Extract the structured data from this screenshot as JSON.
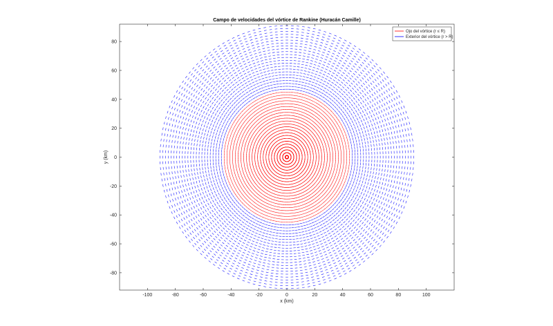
{
  "chart_data": {
    "type": "scatter",
    "title": "Campo de velocidades del vórtice de Rankine (Huracán Camille)",
    "xlabel": "x (km)",
    "ylabel": "y (km)",
    "xlim": [
      -120,
      120
    ],
    "ylim": [
      -92,
      92
    ],
    "xticks": [
      -100,
      -80,
      -60,
      -40,
      -20,
      0,
      20,
      40,
      60,
      80,
      100
    ],
    "yticks": [
      -80,
      -60,
      -40,
      -20,
      0,
      20,
      40,
      60,
      80
    ],
    "grid": false,
    "legend_location": "top-right",
    "series": [
      {
        "name": "Ojo del vórtice (r ≤ R)",
        "color": "#ff0000",
        "r_min": 0,
        "r_max": 46,
        "angles": 144,
        "rings": 23
      },
      {
        "name": "Exterior del vórtice (r > R)",
        "color": "#0000ff",
        "r_min": 46,
        "r_max": 92,
        "angles": 144,
        "rings": 23
      }
    ],
    "core_radius_km": 46
  }
}
